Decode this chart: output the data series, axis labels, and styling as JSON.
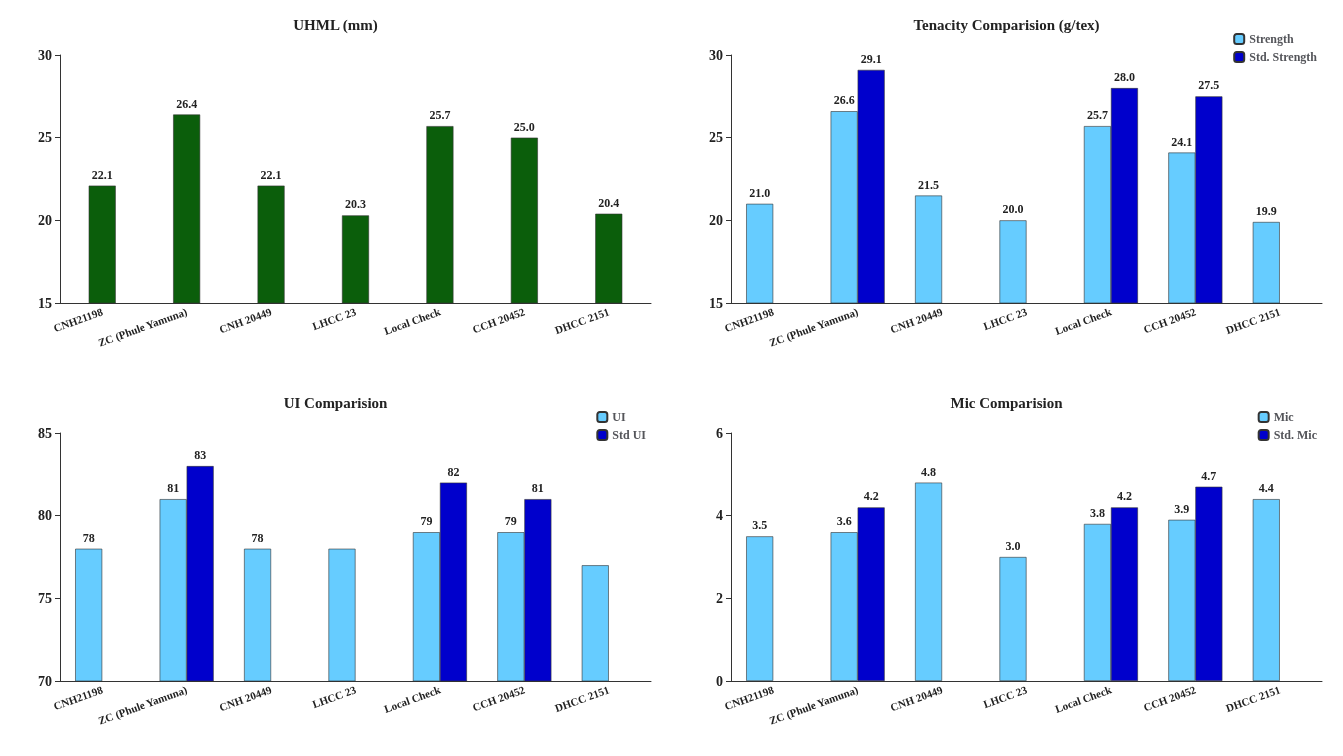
{
  "chart_data": [
    {
      "type": "bar",
      "title": "UHML (mm)",
      "categories": [
        "CNH21198",
        "ZC (Phule Yamuna)",
        "CNH 20449",
        "LHCC 23",
        "Local Check",
        "CCH 20452",
        "DHCC 2151"
      ],
      "series": [
        {
          "color": "#0b5e0b",
          "values": [
            22.1,
            26.4,
            22.1,
            20.3,
            25.7,
            25.0,
            20.4
          ],
          "value_labels": [
            "22.1",
            "26.4",
            "22.1",
            "20.3",
            "25.7",
            "25.0",
            "20.4"
          ]
        }
      ],
      "ylim": [
        15,
        30
      ],
      "yticks": [
        15,
        20,
        25,
        30
      ],
      "legend": false
    },
    {
      "type": "bar",
      "title": "Tenacity Comparision (g/tex)",
      "categories": [
        "CNH21198",
        "ZC (Phule Yamuna)",
        "CNH 20449",
        "LHCC 23",
        "Local Check",
        "CCH 20452",
        "DHCC 2151"
      ],
      "series": [
        {
          "name": "Strength",
          "color": "#66ccff",
          "values": [
            21.0,
            26.6,
            21.5,
            20.0,
            25.7,
            24.1,
            19.9
          ],
          "value_labels": [
            "21.0",
            "26.6",
            "21.5",
            "20.0",
            "25.7",
            "24.1",
            "19.9"
          ]
        },
        {
          "name": "Std. Strength",
          "color": "#0000cc",
          "values": [
            null,
            29.1,
            null,
            null,
            28.0,
            27.5,
            null
          ],
          "value_labels": [
            null,
            "29.1",
            null,
            null,
            "28.0",
            "27.5",
            null
          ]
        }
      ],
      "ylim": [
        15,
        30
      ],
      "yticks": [
        15,
        20,
        25,
        30
      ],
      "legend": "top right"
    },
    {
      "type": "bar",
      "title": "UI Comparision",
      "categories": [
        "CNH21198",
        "ZC (Phule Yamuna)",
        "CNH 20449",
        "LHCC 23",
        "Local Check",
        "CCH 20452",
        "DHCC 2151"
      ],
      "series": [
        {
          "name": "UI",
          "color": "#66ccff",
          "values": [
            78,
            81,
            78,
            78,
            79,
            79,
            77
          ],
          "value_labels": [
            "78",
            "81",
            "78",
            null,
            "79",
            "79",
            null
          ]
        },
        {
          "name": "Std UI",
          "color": "#0000cc",
          "values": [
            null,
            83,
            null,
            null,
            82,
            81,
            null
          ],
          "value_labels": [
            null,
            "83",
            null,
            null,
            "82",
            "81",
            null
          ]
        }
      ],
      "ylim": [
        70,
        85
      ],
      "yticks": [
        70,
        75,
        80,
        85
      ],
      "legend": "top right"
    },
    {
      "type": "bar",
      "title": "Mic Comparision",
      "categories": [
        "CNH21198",
        "ZC (Phule Yamuna)",
        "CNH 20449",
        "LHCC 23",
        "Local Check",
        "CCH 20452",
        "DHCC 2151"
      ],
      "series": [
        {
          "name": "Mic",
          "color": "#66ccff",
          "values": [
            3.5,
            3.6,
            4.8,
            3.0,
            3.8,
            3.9,
            4.4
          ],
          "value_labels": [
            "3.5",
            "3.6",
            "4.8",
            "3.0",
            "3.8",
            "3.9",
            "4.4"
          ]
        },
        {
          "name": "Std. Mic",
          "color": "#0000cc",
          "values": [
            null,
            4.2,
            null,
            null,
            4.2,
            4.7,
            null
          ],
          "value_labels": [
            null,
            "4.2",
            null,
            null,
            "4.2",
            "4.7",
            null
          ]
        }
      ],
      "ylim": [
        0,
        6
      ],
      "yticks": [
        0,
        2,
        4,
        6
      ],
      "legend": "top right"
    }
  ]
}
